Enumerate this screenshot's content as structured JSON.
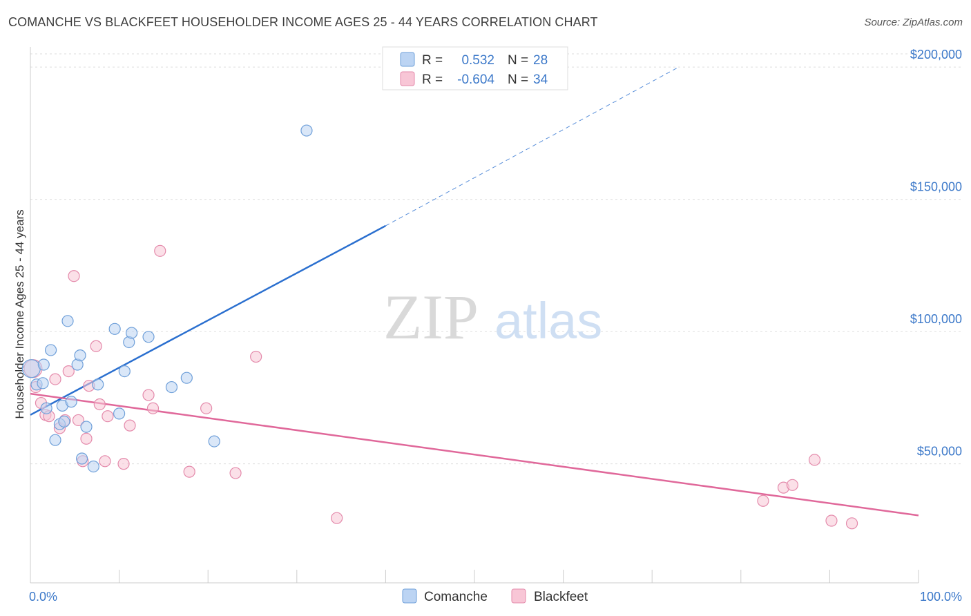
{
  "title": "COMANCHE VS BLACKFEET HOUSEHOLDER INCOME AGES 25 - 44 YEARS CORRELATION CHART",
  "source": "Source: ZipAtlas.com",
  "watermark": {
    "zip": "ZIP",
    "atlas": "atlas"
  },
  "colors": {
    "comanche_fill": "#bcd4f3",
    "comanche_stroke": "#6e9fd9",
    "comanche_line": "#2a6fcf",
    "blackfeet_fill": "#f8c6d6",
    "blackfeet_stroke": "#e48aab",
    "blackfeet_line": "#e0689a",
    "axis_text": "#3b78c9",
    "grid": "#dddddd"
  },
  "legend": {
    "rows": [
      {
        "r_label": "R =",
        "r_value": "0.532",
        "n_label": "N =",
        "n_value": "28"
      },
      {
        "r_label": "R =",
        "r_value": "-0.604",
        "n_label": "N =",
        "n_value": "34"
      }
    ]
  },
  "chart_data": {
    "type": "scatter",
    "title": "COMANCHE VS BLACKFEET HOUSEHOLDER INCOME AGES 25 - 44 YEARS CORRELATION CHART",
    "xlabel": "",
    "ylabel": "Householder Income Ages 25 - 44 years",
    "xlim": [
      0,
      100
    ],
    "ylim": [
      5000,
      205000
    ],
    "x_tick_labels": [
      "0.0%",
      "100.0%"
    ],
    "y_ticks": [
      50000,
      100000,
      150000,
      200000
    ],
    "y_tick_labels": [
      "$50,000",
      "$100,000",
      "$150,000",
      "$200,000"
    ],
    "grid": true,
    "legend_position": "bottom-center",
    "series": [
      {
        "name": "Comanche",
        "r": 0.532,
        "n": 28,
        "points": [
          [
            0.1,
            86000
          ],
          [
            0.7,
            80000
          ],
          [
            1.4,
            80500
          ],
          [
            1.5,
            87500
          ],
          [
            1.8,
            71000
          ],
          [
            2.3,
            93000
          ],
          [
            2.8,
            59000
          ],
          [
            3.3,
            65000
          ],
          [
            3.6,
            72000
          ],
          [
            3.8,
            66000
          ],
          [
            4.2,
            104000
          ],
          [
            4.6,
            73500
          ],
          [
            5.3,
            87500
          ],
          [
            5.6,
            91000
          ],
          [
            5.8,
            52000
          ],
          [
            6.3,
            64000
          ],
          [
            7.1,
            49000
          ],
          [
            7.6,
            80000
          ],
          [
            9.5,
            101000
          ],
          [
            10.0,
            69000
          ],
          [
            10.6,
            85000
          ],
          [
            11.1,
            96000
          ],
          [
            11.4,
            99500
          ],
          [
            13.3,
            98000
          ],
          [
            15.9,
            79000
          ],
          [
            17.6,
            82500
          ],
          [
            20.7,
            58500
          ],
          [
            31.1,
            176000
          ]
        ],
        "trend": {
          "x0": 0,
          "y0": 68500,
          "x1_solid": 40,
          "y1_solid": 140000,
          "x1_dash": 73,
          "y1_dash": 200000
        }
      },
      {
        "name": "Blackfeet",
        "r": -0.604,
        "n": 34,
        "points": [
          [
            0.3,
            86000
          ],
          [
            0.6,
            79000
          ],
          [
            1.2,
            73000
          ],
          [
            1.7,
            68500
          ],
          [
            2.1,
            68000
          ],
          [
            2.8,
            82000
          ],
          [
            3.3,
            63500
          ],
          [
            3.9,
            66500
          ],
          [
            4.3,
            85000
          ],
          [
            4.9,
            121000
          ],
          [
            5.4,
            66500
          ],
          [
            5.9,
            51000
          ],
          [
            6.3,
            59500
          ],
          [
            6.6,
            79500
          ],
          [
            7.4,
            94500
          ],
          [
            7.8,
            72500
          ],
          [
            8.4,
            51000
          ],
          [
            8.7,
            68000
          ],
          [
            10.5,
            50000
          ],
          [
            11.2,
            64500
          ],
          [
            13.3,
            76000
          ],
          [
            13.8,
            71000
          ],
          [
            14.6,
            130500
          ],
          [
            17.9,
            47000
          ],
          [
            19.8,
            71000
          ],
          [
            23.1,
            46500
          ],
          [
            25.4,
            90500
          ],
          [
            34.5,
            29500
          ],
          [
            82.5,
            36000
          ],
          [
            84.8,
            41000
          ],
          [
            85.8,
            42000
          ],
          [
            88.3,
            51500
          ],
          [
            90.2,
            28500
          ],
          [
            92.5,
            27500
          ]
        ],
        "trend": {
          "x0": 0,
          "y0": 76500,
          "x1": 100,
          "y1": 30500
        }
      }
    ]
  }
}
